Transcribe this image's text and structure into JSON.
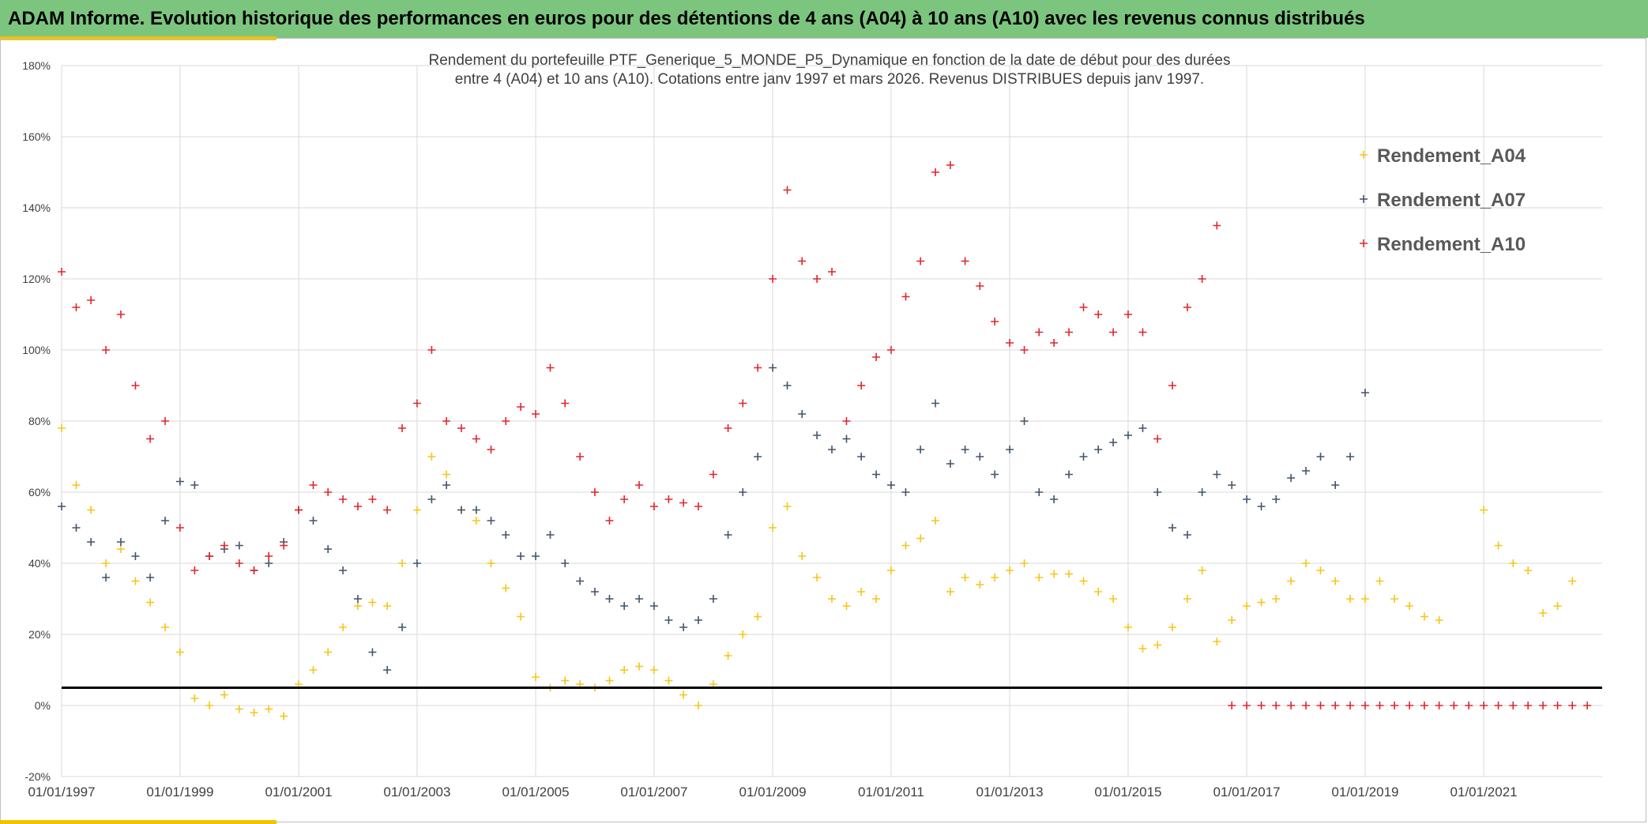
{
  "header": {
    "title": "ADAM Informe. Evolution historique des performances en euros pour des détentions de 4 ans (A04) à 10 ans (A10) avec les revenus connus distribués"
  },
  "colors": {
    "header_bg": "#7cc57e",
    "accent": "#f2c400",
    "A04": "#f5c518",
    "A07": "#44546a",
    "A10": "#e0262b",
    "reference_line": "#000000",
    "grid": "#d9d9d9"
  },
  "chart_data": {
    "type": "scatter",
    "title_lines": [
      "Rendement du portefeuille PTF_Generique_5_MONDE_P5_Dynamique  en fonction de la date de début pour des durées",
      "entre 4 (A04) et 10 ans (A10). Cotations entre janv 1997 et mars 2026. Revenus DISTRIBUES depuis janv 1997."
    ],
    "xlabel": "",
    "ylabel": "",
    "x_ticks": [
      "01/01/1997",
      "01/01/1999",
      "01/01/2001",
      "01/01/2003",
      "01/01/2005",
      "01/01/2007",
      "01/01/2009",
      "01/01/2011",
      "01/01/2013",
      "01/01/2015",
      "01/01/2017",
      "01/01/2019",
      "01/01/2021"
    ],
    "xlim": [
      "1997-01-01",
      "2023-01-01"
    ],
    "y_ticks": [
      "-20%",
      "0%",
      "20%",
      "40%",
      "60%",
      "80%",
      "100%",
      "120%",
      "140%",
      "160%",
      "180%"
    ],
    "ylim": [
      -0.2,
      1.8
    ],
    "grid": true,
    "legend_position": "right",
    "marker": "+",
    "reference_line": {
      "y": 0.05
    },
    "series": [
      {
        "name": "Rendement_A04",
        "color": "#f5c518",
        "x": [
          "1997-01-01",
          "1997-04-01",
          "1997-07-01",
          "1997-10-01",
          "1998-01-01",
          "1998-04-01",
          "1998-07-01",
          "1998-10-01",
          "1999-01-01",
          "1999-04-01",
          "1999-07-01",
          "1999-10-01",
          "2000-01-01",
          "2000-04-01",
          "2000-07-01",
          "2000-10-01",
          "2001-01-01",
          "2001-04-01",
          "2001-07-01",
          "2001-10-01",
          "2002-01-01",
          "2002-04-01",
          "2002-07-01",
          "2002-10-01",
          "2003-01-01",
          "2003-04-01",
          "2003-07-01",
          "2003-10-01",
          "2004-01-01",
          "2004-04-01",
          "2004-07-01",
          "2004-10-01",
          "2005-01-01",
          "2005-04-01",
          "2005-07-01",
          "2005-10-01",
          "2006-01-01",
          "2006-04-01",
          "2006-07-01",
          "2006-10-01",
          "2007-01-01",
          "2007-04-01",
          "2007-07-01",
          "2007-10-01",
          "2008-01-01",
          "2008-04-01",
          "2008-07-01",
          "2008-10-01",
          "2009-01-01",
          "2009-04-01",
          "2009-07-01",
          "2009-10-01",
          "2010-01-01",
          "2010-04-01",
          "2010-07-01",
          "2010-10-01",
          "2011-01-01",
          "2011-04-01",
          "2011-07-01",
          "2011-10-01",
          "2012-01-01",
          "2012-04-01",
          "2012-07-01",
          "2012-10-01",
          "2013-01-01",
          "2013-04-01",
          "2013-07-01",
          "2013-10-01",
          "2014-01-01",
          "2014-04-01",
          "2014-07-01",
          "2014-10-01",
          "2015-01-01",
          "2015-04-01",
          "2015-07-01",
          "2015-10-01",
          "2016-01-01",
          "2016-04-01",
          "2016-07-01",
          "2016-10-01",
          "2017-01-01",
          "2017-04-01",
          "2017-07-01",
          "2017-10-01",
          "2018-01-01",
          "2018-04-01",
          "2018-07-01",
          "2018-10-01",
          "2019-01-01",
          "2019-04-01",
          "2019-07-01",
          "2019-10-01",
          "2020-01-01",
          "2020-04-01",
          "2020-07-01",
          "2020-10-01",
          "2021-01-01",
          "2021-04-01",
          "2021-07-01",
          "2021-10-01",
          "2022-01-01",
          "2022-04-01",
          "2022-07-01"
        ],
        "values": [
          0.78,
          0.62,
          0.55,
          0.4,
          0.44,
          0.35,
          0.29,
          0.22,
          0.15,
          0.02,
          0.0,
          0.03,
          -0.01,
          -0.02,
          -0.01,
          -0.03,
          0.06,
          0.1,
          0.15,
          0.22,
          0.28,
          0.29,
          0.28,
          0.4,
          0.55,
          0.7,
          0.65,
          0.55,
          0.52,
          0.4,
          0.33,
          0.25,
          0.08,
          0.05,
          0.07,
          0.06,
          0.05,
          0.07,
          0.1,
          0.11,
          0.1,
          0.07,
          0.03,
          0.0,
          0.06,
          0.14,
          0.2,
          0.25,
          0.5,
          0.56,
          0.42,
          0.36,
          0.3,
          0.28,
          0.32,
          0.3,
          0.38,
          0.45,
          0.47,
          0.52,
          0.32,
          0.36,
          0.34,
          0.36,
          0.38,
          0.4,
          0.36,
          0.37,
          0.37,
          0.35,
          0.32,
          0.3,
          0.22,
          0.16,
          0.17,
          0.22,
          0.3,
          0.38,
          0.18,
          0.24,
          0.28,
          0.29,
          0.3,
          0.35,
          0.4,
          0.38,
          0.35,
          0.3,
          0.3,
          0.35,
          0.3,
          0.28,
          0.25,
          0.24,
          null,
          null,
          0.55,
          0.45,
          0.4,
          0.38,
          0.26,
          0.28,
          0.35
        ]
      },
      {
        "name": "Rendement_A07",
        "color": "#44546a",
        "x": [
          "1997-01-01",
          "1997-04-01",
          "1997-07-01",
          "1997-10-01",
          "1998-01-01",
          "1998-04-01",
          "1998-07-01",
          "1998-10-01",
          "1999-01-01",
          "1999-04-01",
          "1999-07-01",
          "1999-10-01",
          "2000-01-01",
          "2000-04-01",
          "2000-07-01",
          "2000-10-01",
          "2001-01-01",
          "2001-04-01",
          "2001-07-01",
          "2001-10-01",
          "2002-01-01",
          "2002-04-01",
          "2002-07-01",
          "2002-10-01",
          "2003-01-01",
          "2003-04-01",
          "2003-07-01",
          "2003-10-01",
          "2004-01-01",
          "2004-04-01",
          "2004-07-01",
          "2004-10-01",
          "2005-01-01",
          "2005-04-01",
          "2005-07-01",
          "2005-10-01",
          "2006-01-01",
          "2006-04-01",
          "2006-07-01",
          "2006-10-01",
          "2007-01-01",
          "2007-04-01",
          "2007-07-01",
          "2007-10-01",
          "2008-01-01",
          "2008-04-01",
          "2008-07-01",
          "2008-10-01",
          "2009-01-01",
          "2009-04-01",
          "2009-07-01",
          "2009-10-01",
          "2010-01-01",
          "2010-04-01",
          "2010-07-01",
          "2010-10-01",
          "2011-01-01",
          "2011-04-01",
          "2011-07-01",
          "2011-10-01",
          "2012-01-01",
          "2012-04-01",
          "2012-07-01",
          "2012-10-01",
          "2013-01-01",
          "2013-04-01",
          "2013-07-01",
          "2013-10-01",
          "2014-01-01",
          "2014-04-01",
          "2014-07-01",
          "2014-10-01",
          "2015-01-01",
          "2015-04-01",
          "2015-07-01",
          "2015-10-01",
          "2016-01-01",
          "2016-04-01",
          "2016-07-01",
          "2016-10-01",
          "2017-01-01",
          "2017-04-01",
          "2017-07-01",
          "2017-10-01",
          "2018-01-01",
          "2018-04-01",
          "2018-07-01",
          "2018-10-01",
          "2019-01-01"
        ],
        "values": [
          0.56,
          0.5,
          0.46,
          0.36,
          0.46,
          0.42,
          0.36,
          0.52,
          0.63,
          0.62,
          0.42,
          0.44,
          0.45,
          0.38,
          0.4,
          0.46,
          0.55,
          0.52,
          0.44,
          0.38,
          0.3,
          0.15,
          0.1,
          0.22,
          0.4,
          0.58,
          0.62,
          0.55,
          0.55,
          0.52,
          0.48,
          0.42,
          0.42,
          0.48,
          0.4,
          0.35,
          0.32,
          0.3,
          0.28,
          0.3,
          0.28,
          0.24,
          0.22,
          0.24,
          0.3,
          0.48,
          0.6,
          0.7,
          0.95,
          0.9,
          0.82,
          0.76,
          0.72,
          0.75,
          0.7,
          0.65,
          0.62,
          0.6,
          0.72,
          0.85,
          0.68,
          0.72,
          0.7,
          0.65,
          0.72,
          0.8,
          0.6,
          0.58,
          0.65,
          0.7,
          0.72,
          0.74,
          0.76,
          0.78,
          0.6,
          0.5,
          0.48,
          0.6,
          0.65,
          0.62,
          0.58,
          0.56,
          0.58,
          0.64,
          0.66,
          0.7,
          0.62,
          0.7,
          0.88
        ]
      },
      {
        "name": "Rendement_A10",
        "color": "#e0262b",
        "x": [
          "1997-01-01",
          "1997-04-01",
          "1997-07-01",
          "1997-10-01",
          "1998-01-01",
          "1998-04-01",
          "1998-07-01",
          "1998-10-01",
          "1999-01-01",
          "1999-04-01",
          "1999-07-01",
          "1999-10-01",
          "2000-01-01",
          "2000-04-01",
          "2000-07-01",
          "2000-10-01",
          "2001-01-01",
          "2001-04-01",
          "2001-07-01",
          "2001-10-01",
          "2002-01-01",
          "2002-04-01",
          "2002-07-01",
          "2002-10-01",
          "2003-01-01",
          "2003-04-01",
          "2003-07-01",
          "2003-10-01",
          "2004-01-01",
          "2004-04-01",
          "2004-07-01",
          "2004-10-01",
          "2005-01-01",
          "2005-04-01",
          "2005-07-01",
          "2005-10-01",
          "2006-01-01",
          "2006-04-01",
          "2006-07-01",
          "2006-10-01",
          "2007-01-01",
          "2007-04-01",
          "2007-07-01",
          "2007-10-01",
          "2008-01-01",
          "2008-04-01",
          "2008-07-01",
          "2008-10-01",
          "2009-01-01",
          "2009-04-01",
          "2009-07-01",
          "2009-10-01",
          "2010-01-01",
          "2010-04-01",
          "2010-07-01",
          "2010-10-01",
          "2011-01-01",
          "2011-04-01",
          "2011-07-01",
          "2011-10-01",
          "2012-01-01",
          "2012-04-01",
          "2012-07-01",
          "2012-10-01",
          "2013-01-01",
          "2013-04-01",
          "2013-07-01",
          "2013-10-01",
          "2014-01-01",
          "2014-04-01",
          "2014-07-01",
          "2014-10-01",
          "2015-01-01",
          "2015-04-01",
          "2015-07-01",
          "2015-10-01",
          "2016-01-01",
          "2016-04-01",
          "2016-07-01",
          "2016-10-01",
          "2017-01-01",
          "2017-04-01",
          "2017-07-01",
          "2017-10-01",
          "2018-01-01",
          "2018-04-01",
          "2018-07-01",
          "2018-10-01",
          "2019-01-01",
          "2019-04-01",
          "2019-07-01",
          "2019-10-01",
          "2020-01-01",
          "2020-04-01",
          "2020-07-01",
          "2020-10-01",
          "2021-01-01",
          "2021-04-01",
          "2021-07-01",
          "2021-10-01",
          "2022-01-01",
          "2022-04-01",
          "2022-07-01",
          "2022-10-01"
        ],
        "values": [
          1.22,
          1.12,
          1.14,
          1.0,
          1.1,
          0.9,
          0.75,
          0.8,
          0.5,
          0.38,
          0.42,
          0.45,
          0.4,
          0.38,
          0.42,
          0.45,
          0.55,
          0.62,
          0.6,
          0.58,
          0.56,
          0.58,
          0.55,
          0.78,
          0.85,
          1.0,
          0.8,
          0.78,
          0.75,
          0.72,
          0.8,
          0.84,
          0.82,
          0.95,
          0.85,
          0.7,
          0.6,
          0.52,
          0.58,
          0.62,
          0.56,
          0.58,
          0.57,
          0.56,
          0.65,
          0.78,
          0.85,
          0.95,
          1.2,
          1.45,
          1.25,
          1.2,
          1.22,
          0.8,
          0.9,
          0.98,
          1.0,
          1.15,
          1.25,
          1.5,
          1.52,
          1.25,
          1.18,
          1.08,
          1.02,
          1.0,
          1.05,
          1.02,
          1.05,
          1.12,
          1.1,
          1.05,
          1.1,
          1.05,
          0.75,
          0.9,
          1.12,
          1.2,
          1.35,
          0,
          0,
          0,
          0,
          0,
          0,
          0,
          0,
          0,
          0,
          0,
          0,
          0,
          0,
          0,
          0,
          0,
          0,
          0,
          0,
          0,
          0,
          0,
          0,
          0
        ]
      }
    ]
  }
}
